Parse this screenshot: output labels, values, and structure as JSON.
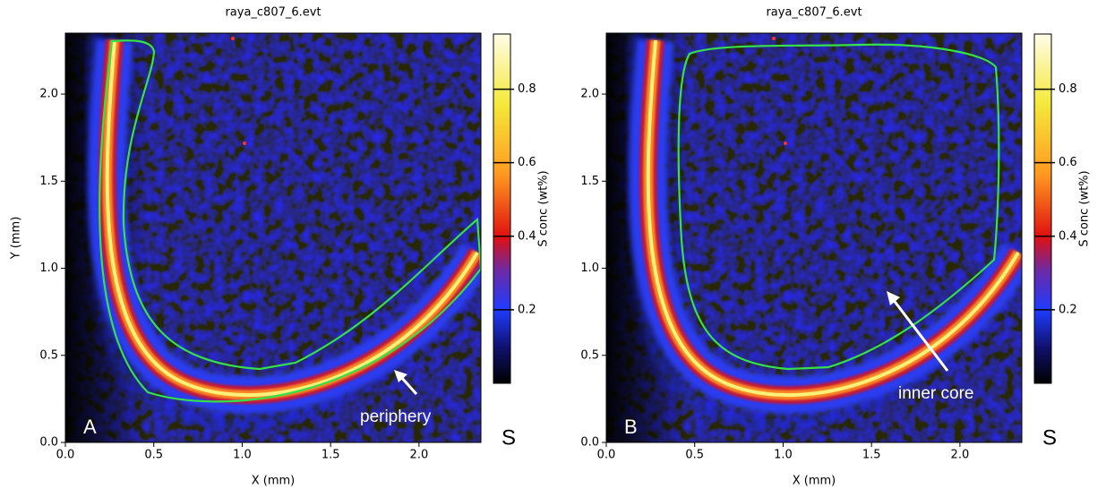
{
  "chart_data": [
    {
      "type": "heatmap",
      "title": "raya_c807_6.evt",
      "x_label": "X (mm)",
      "y_label": "Y (mm)",
      "xlim": [
        0,
        2.35
      ],
      "ylim": [
        0,
        2.35
      ],
      "xticks": [
        {
          "value": 0,
          "label": "0.0"
        },
        0.5,
        {
          "value": 1,
          "label": "1.0"
        },
        1.5,
        {
          "value": 2,
          "label": "2.0"
        }
      ],
      "yticks": [
        {
          "value": 0,
          "label": "0.0"
        },
        0.5,
        {
          "value": 1,
          "label": "1.0"
        },
        1.5,
        {
          "value": 2,
          "label": "2.0"
        }
      ],
      "colorbar_label": "S conc (wt%)",
      "clim": [
        0,
        0.95
      ],
      "cticks": [
        0.2,
        0.4,
        0.6,
        0.8
      ],
      "panel_label": "A",
      "annotation": "periphery",
      "element_label": "S"
    },
    {
      "type": "heatmap",
      "title": "raya_c807_6.evt",
      "x_label": "X (mm)",
      "xlim": [
        0,
        2.35
      ],
      "ylim": [
        0,
        2.35
      ],
      "xticks": [
        {
          "value": 0,
          "label": "0.0"
        },
        0.5,
        {
          "value": 1,
          "label": "1.0"
        },
        1.5,
        {
          "value": 2,
          "label": "2.0"
        }
      ],
      "yticks": [
        {
          "value": 0,
          "label": "0.0"
        },
        0.5,
        {
          "value": 1,
          "label": "1.0"
        },
        1.5,
        {
          "value": 2,
          "label": "2.0"
        }
      ],
      "colorbar_label": "S conc (wt%)",
      "clim": [
        0,
        0.95
      ],
      "cticks": [
        0.2,
        0.4,
        0.6,
        0.8
      ],
      "panel_label": "B",
      "annotation": "inner core",
      "element_label": "S"
    }
  ]
}
